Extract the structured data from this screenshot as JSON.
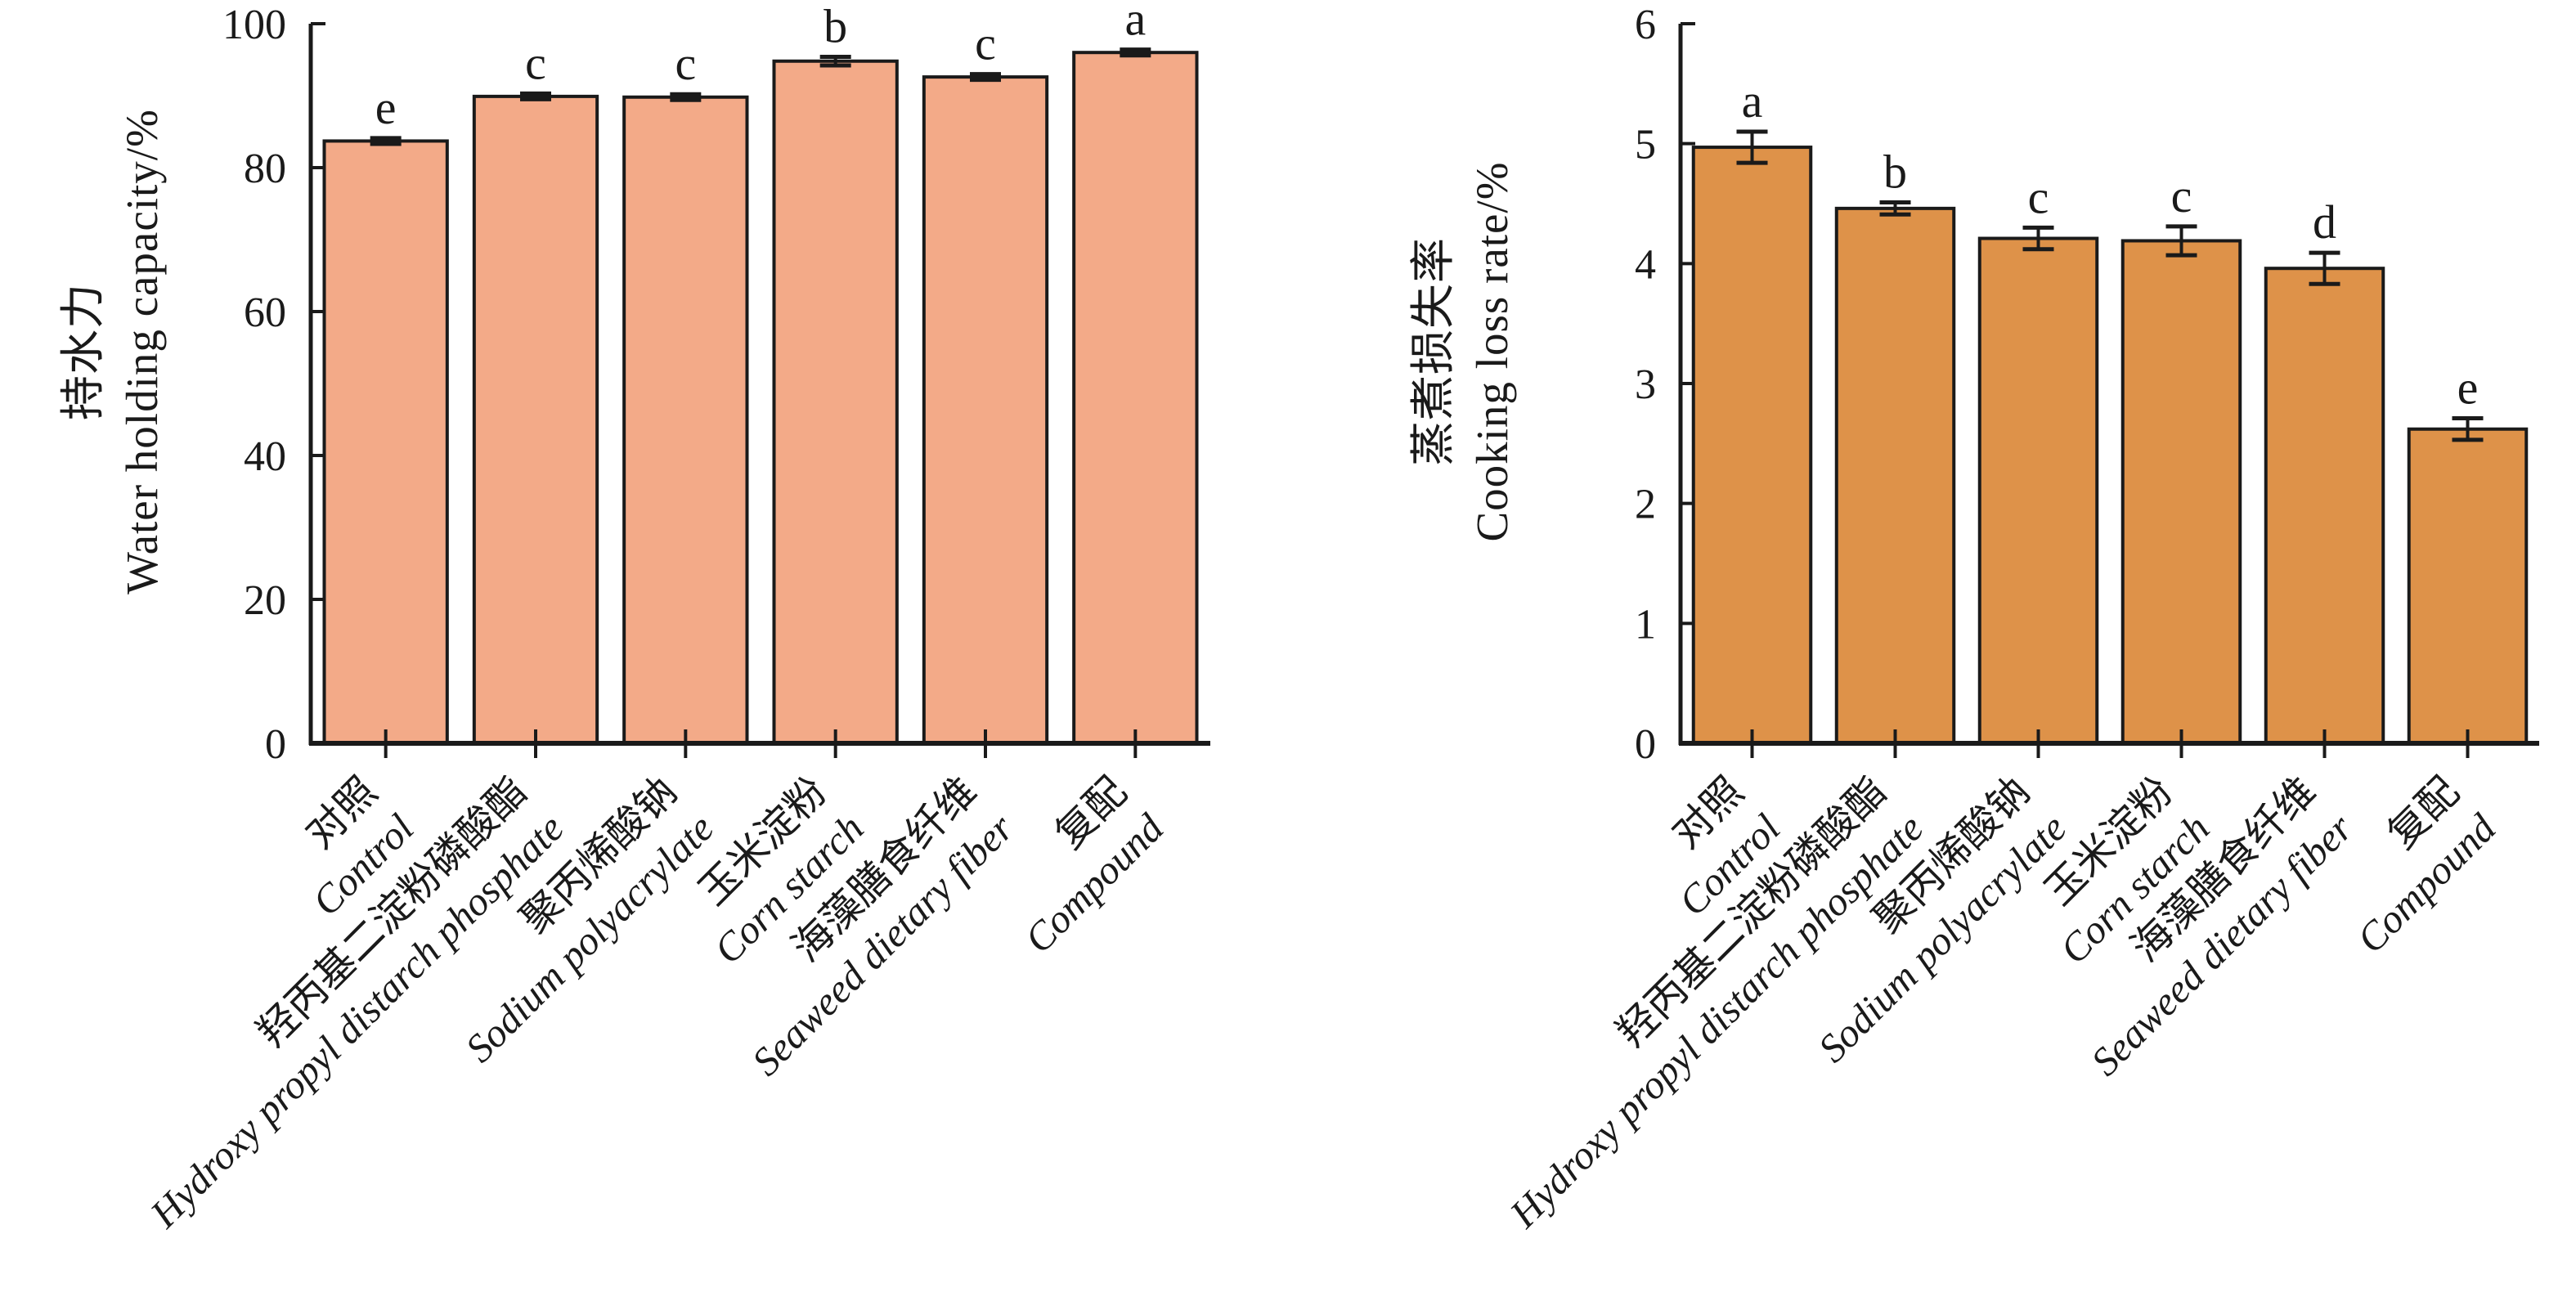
{
  "figure": {
    "background": "#ffffff",
    "axis_color": "#1a1a1a",
    "description_left": "Water holding capacity bar chart",
    "description_right": "Cooking loss rate bar chart"
  },
  "chart_data": [
    {
      "type": "bar",
      "title": "",
      "ylabel_zh": "持水力",
      "ylabel_en": "Water holding capacity/%",
      "xlabel": "",
      "ylim": [
        0,
        100
      ],
      "yticks": [
        0,
        20,
        40,
        60,
        80,
        100
      ],
      "grid": false,
      "legend": "none",
      "bar_color": "#F3AA88",
      "bar_edge_color": "#1a1a1a",
      "error_bar_color": "#1a1a1a",
      "categories_zh": [
        "对照",
        "羟丙基二淀粉磷酸酯",
        "聚丙烯酸钠",
        "玉米淀粉",
        "海藻膳食纤维",
        "复配"
      ],
      "categories_en": [
        "Control",
        "Hydroxy propyl distarch phosphate",
        "Sodium polyacrylate",
        "Corn starch",
        "Seaweed dietary fiber",
        "Compound"
      ],
      "values": [
        83.7,
        89.9,
        89.8,
        94.8,
        92.6,
        96.0
      ],
      "errors": [
        0.4,
        0.4,
        0.4,
        0.6,
        0.4,
        0.4
      ],
      "sig_letters": [
        "e",
        "c",
        "c",
        "b",
        "c",
        "a"
      ]
    },
    {
      "type": "bar",
      "title": "",
      "ylabel_zh": "蒸煮损失率",
      "ylabel_en": "Cooking loss rate/%",
      "xlabel": "",
      "ylim": [
        0,
        6
      ],
      "yticks": [
        0,
        1,
        2,
        3,
        4,
        5,
        6
      ],
      "grid": false,
      "legend": "none",
      "bar_color": "#DE9249",
      "bar_edge_color": "#1a1a1a",
      "error_bar_color": "#1a1a1a",
      "categories_zh": [
        "对照",
        "羟丙基二淀粉磷酸酯",
        "聚丙烯酸钠",
        "玉米淀粉",
        "海藻膳食纤维",
        "复配"
      ],
      "categories_en": [
        "Control",
        "Hydroxy propyl distarch phosphate",
        "Sodium polyacrylate",
        "Corn starch",
        "Seaweed dietary fiber",
        "Compound"
      ],
      "values": [
        4.97,
        4.46,
        4.21,
        4.19,
        3.96,
        2.62
      ],
      "errors": [
        0.13,
        0.05,
        0.09,
        0.12,
        0.13,
        0.09
      ],
      "sig_letters": [
        "a",
        "b",
        "c",
        "c",
        "d",
        "e"
      ]
    }
  ]
}
